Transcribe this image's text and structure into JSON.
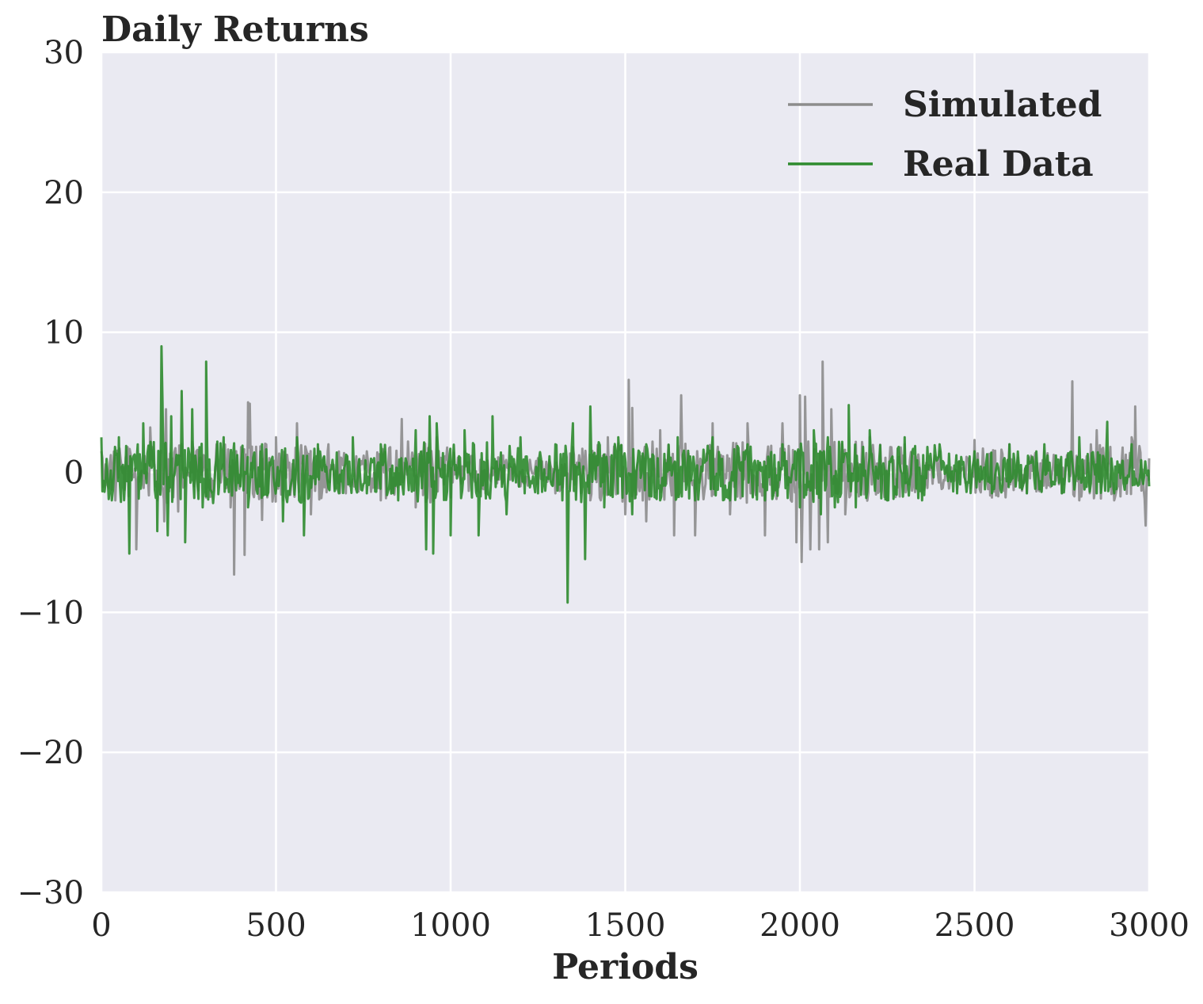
{
  "chart_data": {
    "type": "line",
    "title": "Daily Returns",
    "xlabel": "Periods",
    "ylabel": "",
    "xlim": [
      0,
      3000
    ],
    "ylim": [
      -30,
      30
    ],
    "xticks": [
      0,
      500,
      1000,
      1500,
      2000,
      2500,
      3000
    ],
    "xtick_labels": [
      "0",
      "500",
      "1000",
      "1500",
      "2000",
      "2500",
      "3000"
    ],
    "yticks": [
      30,
      20,
      10,
      0,
      -10,
      -20,
      -30
    ],
    "ytick_labels": [
      "30",
      "20",
      "10",
      "0",
      "−10",
      "−20",
      "−30"
    ],
    "grid": true,
    "legend_position": "top-right",
    "series": [
      {
        "name": "Simulated",
        "color": "#8c8c8c",
        "x": [
          0,
          40,
          75,
          100,
          140,
          180,
          185,
          220,
          260,
          300,
          330,
          370,
          380,
          400,
          410,
          420,
          425,
          460,
          500,
          520,
          560,
          600,
          650,
          700,
          760,
          800,
          860,
          900,
          960,
          1000,
          1040,
          1100,
          1150,
          1200,
          1250,
          1300,
          1350,
          1400,
          1450,
          1500,
          1510,
          1520,
          1560,
          1600,
          1640,
          1660,
          1700,
          1750,
          1800,
          1850,
          1900,
          1950,
          1990,
          2000,
          2005,
          2015,
          2030,
          2055,
          2065,
          2080,
          2090,
          2130,
          2200,
          2250,
          2300,
          2350,
          2400,
          2450,
          2500,
          2550,
          2600,
          2650,
          2700,
          2750,
          2780,
          2800,
          2850,
          2900,
          2950,
          2960,
          2990,
          3000
        ],
        "y": [
          1.5,
          -2.0,
          1.8,
          -5.5,
          3.2,
          -3.5,
          4.5,
          -2.8,
          2.2,
          -1.8,
          2.0,
          -2.5,
          -7.3,
          1.8,
          -5.9,
          5.0,
          4.9,
          -3.4,
          2.5,
          -2.0,
          3.5,
          -3.0,
          2.0,
          -1.5,
          1.5,
          -2.0,
          3.8,
          -2.5,
          2.5,
          -1.8,
          1.5,
          -1.5,
          1.2,
          -1.0,
          1.0,
          -1.5,
          1.8,
          -2.0,
          2.5,
          -3.0,
          6.6,
          4.6,
          -3.5,
          3.0,
          -4.5,
          5.5,
          -4.5,
          3.5,
          -3.0,
          3.5,
          -4.5,
          3.5,
          -5.0,
          5.5,
          -6.4,
          5.4,
          -5.5,
          -5.5,
          7.9,
          -5.0,
          4.5,
          -3.0,
          2.5,
          -2.0,
          2.0,
          -1.5,
          1.5,
          -1.2,
          2.3,
          -1.8,
          2.0,
          -1.5,
          1.5,
          -1.5,
          6.5,
          -2.0,
          3.0,
          -2.0,
          2.5,
          4.7,
          -3.8,
          1.0
        ]
      },
      {
        "name": "Real Data",
        "color": "#2e8b2e",
        "x": [
          0,
          30,
          50,
          80,
          120,
          160,
          172,
          175,
          190,
          200,
          230,
          240,
          260,
          290,
          300,
          320,
          350,
          420,
          460,
          520,
          560,
          580,
          620,
          680,
          720,
          760,
          800,
          850,
          900,
          930,
          940,
          950,
          960,
          1000,
          1040,
          1080,
          1120,
          1160,
          1200,
          1250,
          1300,
          1320,
          1335,
          1350,
          1385,
          1400,
          1440,
          1480,
          1520,
          1560,
          1600,
          1650,
          1700,
          1750,
          1800,
          1850,
          1900,
          1950,
          2000,
          2040,
          2060,
          2080,
          2100,
          2140,
          2160,
          2200,
          2250,
          2300,
          2350,
          2400,
          2450,
          2500,
          2550,
          2600,
          2650,
          2700,
          2750,
          2800,
          2850,
          2880,
          2900,
          2950,
          3000
        ],
        "y": [
          2.5,
          -2.0,
          2.5,
          -5.8,
          3.5,
          -4.2,
          9.0,
          5.0,
          -4.5,
          4.0,
          5.8,
          -5.0,
          4.5,
          -2.5,
          7.9,
          -2.2,
          2.5,
          -2.5,
          2.0,
          -3.5,
          2.5,
          -4.5,
          2.0,
          -1.5,
          2.5,
          -1.5,
          2.0,
          -2.0,
          3.0,
          -5.5,
          4.0,
          -5.8,
          3.5,
          -4.5,
          3.0,
          -4.5,
          4.0,
          -3.0,
          2.5,
          -1.5,
          2.0,
          -2.0,
          -9.3,
          3.5,
          -6.2,
          4.7,
          -2.5,
          2.5,
          -3.0,
          2.0,
          -2.0,
          2.5,
          -2.0,
          2.5,
          -2.0,
          2.0,
          -2.0,
          2.0,
          -2.5,
          3.0,
          -3.0,
          2.5,
          -2.5,
          4.8,
          -2.5,
          3.0,
          -2.0,
          2.5,
          -2.0,
          2.0,
          -1.5,
          1.5,
          -1.5,
          2.0,
          -1.5,
          2.0,
          -1.5,
          2.5,
          -1.5,
          3.6,
          -1.5,
          2.0,
          -1.0
        ]
      }
    ]
  }
}
